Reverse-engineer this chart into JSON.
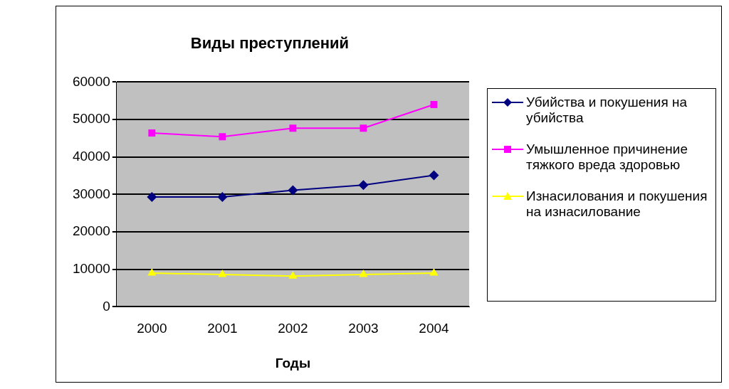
{
  "chart_data": {
    "type": "line",
    "title": "Виды преступлений",
    "xlabel": "Годы",
    "categories": [
      "2000",
      "2001",
      "2002",
      "2003",
      "2004"
    ],
    "series": [
      {
        "name": "Убийства и покушения на убийства",
        "color": "#000080",
        "marker": "diamond",
        "values": [
          29300,
          29300,
          31100,
          32500,
          35100
        ]
      },
      {
        "name": "Умышленное причинение тяжкого вреда здоровью",
        "color": "#ff00ff",
        "marker": "square",
        "values": [
          46400,
          45400,
          47700,
          47700,
          54000
        ]
      },
      {
        "name": "Изнасилования и покушения на изнасилование",
        "color": "#ffff00",
        "marker": "triangle",
        "values": [
          9000,
          8600,
          8200,
          8600,
          9000
        ]
      }
    ],
    "ylim": [
      0,
      60000
    ],
    "yticks": [
      0,
      10000,
      20000,
      30000,
      40000,
      50000,
      60000
    ],
    "grid": "y",
    "legend": "right"
  }
}
